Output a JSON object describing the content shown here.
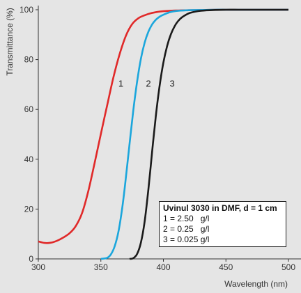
{
  "chart_data": {
    "type": "line",
    "xlabel": "Wavelength (nm)",
    "ylabel": "Transmittance (%)",
    "xlim": [
      300,
      500
    ],
    "ylim": [
      0,
      100
    ],
    "xticks": [
      300,
      350,
      400,
      450,
      500
    ],
    "yticks": [
      0,
      20,
      40,
      60,
      80,
      100
    ],
    "grid": false,
    "legend_position": "bottom-right",
    "legend": {
      "title": "Uvinul 3030 in DMF, d = 1 cm",
      "lines": [
        "1 = 2.50   g/l",
        "2 = 0.25   g/l",
        "3 = 0.025 g/l"
      ]
    },
    "series": [
      {
        "name": "1",
        "color": "#e02929",
        "x": [
          300,
          305,
          310,
          315,
          320,
          325,
          330,
          335,
          340,
          345,
          350,
          355,
          360,
          365,
          370,
          375,
          380,
          385,
          390,
          395,
          400,
          410,
          420,
          430,
          440,
          450,
          460,
          470,
          480,
          490,
          500
        ],
        "y": [
          7,
          6.4,
          6.5,
          7.3,
          8.6,
          10.3,
          13.2,
          18.4,
          27.3,
          38.5,
          50.2,
          61.5,
          72.8,
          82.2,
          89.5,
          94.2,
          96.6,
          97.8,
          98.6,
          99.1,
          99.4,
          99.7,
          99.8,
          99.9,
          100,
          100,
          100,
          100,
          100,
          100,
          100
        ]
      },
      {
        "name": "2",
        "color": "#1ba6dc",
        "x": [
          350,
          355,
          358,
          361,
          364,
          367,
          370,
          373,
          376,
          379,
          382,
          385,
          388,
          391,
          394,
          397,
          400,
          405,
          410,
          420,
          430,
          440,
          450,
          460,
          470,
          480,
          490,
          500
        ],
        "y": [
          0,
          0.4,
          1.8,
          5.0,
          10.8,
          20.2,
          32.5,
          46.3,
          59.8,
          71.2,
          80.3,
          86.8,
          91.2,
          94.1,
          96.0,
          97.2,
          98.0,
          99.0,
          99.5,
          99.8,
          99.9,
          100,
          100,
          100,
          100,
          100,
          100,
          100
        ]
      },
      {
        "name": "3",
        "color": "#1a1a1a",
        "x": [
          373,
          376,
          379,
          382,
          385,
          388,
          391,
          394,
          397,
          400,
          403,
          406,
          409,
          412,
          415,
          420,
          425,
          430,
          440,
          450,
          460,
          470,
          480,
          490,
          500
        ],
        "y": [
          0,
          0.3,
          2.0,
          6.5,
          15.0,
          28.0,
          43.0,
          57.5,
          69.5,
          78.8,
          85.5,
          90.2,
          93.4,
          95.6,
          97.0,
          98.5,
          99.2,
          99.6,
          99.9,
          100,
          100,
          100,
          100,
          100,
          100
        ]
      }
    ]
  },
  "curve_labels": [
    {
      "text": "1",
      "x": 364,
      "y": 70.5
    },
    {
      "text": "2",
      "x": 386,
      "y": 70.5
    },
    {
      "text": "3",
      "x": 405,
      "y": 70.5
    }
  ]
}
